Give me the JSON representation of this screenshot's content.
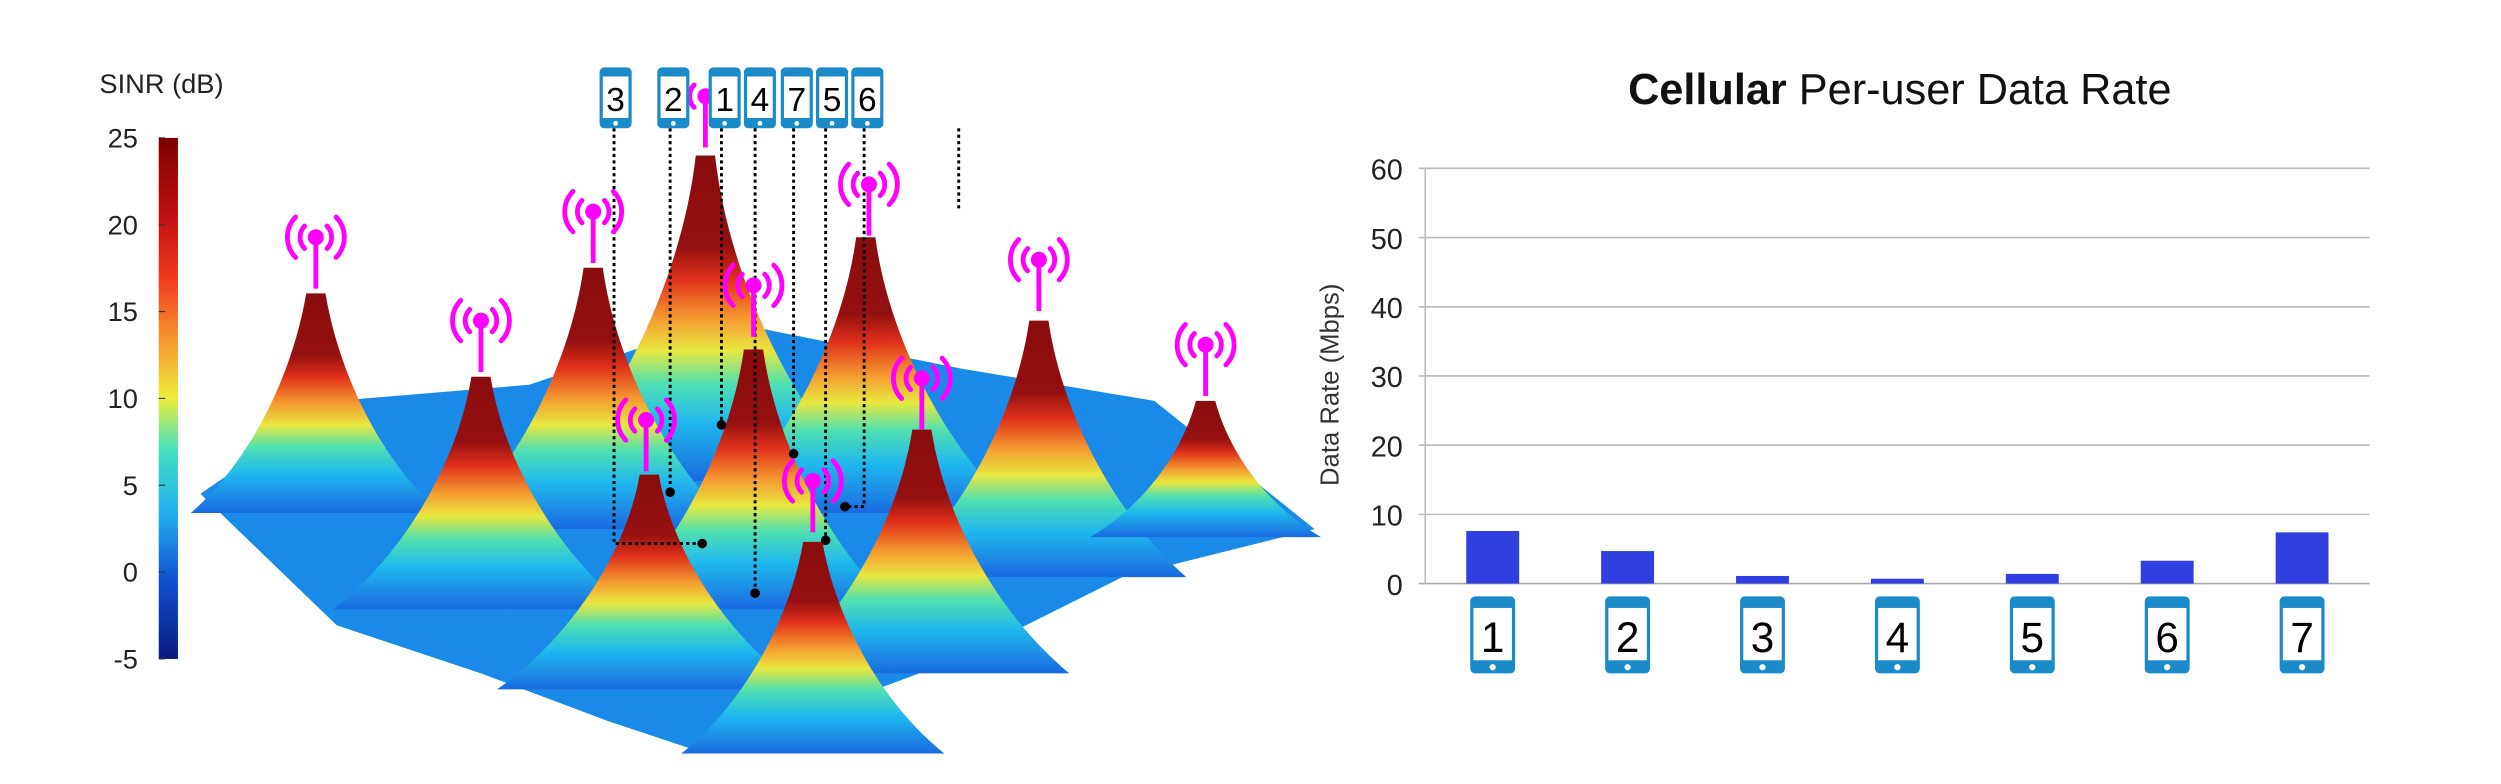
{
  "colorbar": {
    "title": "SINR (dB)",
    "ticks": [
      "25",
      "20",
      "15",
      "10",
      "5",
      "0",
      "-5"
    ],
    "range": [
      -5,
      25
    ],
    "colormap": [
      "#7f0000",
      "#e8201a",
      "#f7a030",
      "#eded3a",
      "#40e0c0",
      "#20b0f0",
      "#1040c0",
      "#0a1a80"
    ]
  },
  "surface_users": {
    "phone_labels": [
      "3",
      "2",
      "1",
      "4",
      "7",
      "5",
      "6"
    ],
    "antenna_color": "#ff00ff",
    "phone_color": "#1a8ac8"
  },
  "chart_data": {
    "type": "bar",
    "title_bold": "Cellular",
    "title_rest": " Per-user Data Rate",
    "xlabel": "",
    "ylabel": "Data Rate (Mbps)",
    "categories": [
      "1",
      "2",
      "3",
      "4",
      "5",
      "6",
      "7"
    ],
    "category_icon": "smartphone-icon",
    "values": [
      7.6,
      4.7,
      1.1,
      0.7,
      1.4,
      3.3,
      7.4
    ],
    "ylim": [
      0,
      60
    ],
    "yticks": [
      "0",
      "10",
      "20",
      "30",
      "40",
      "50",
      "60"
    ],
    "grid": true,
    "bar_color": "#3040e0"
  }
}
